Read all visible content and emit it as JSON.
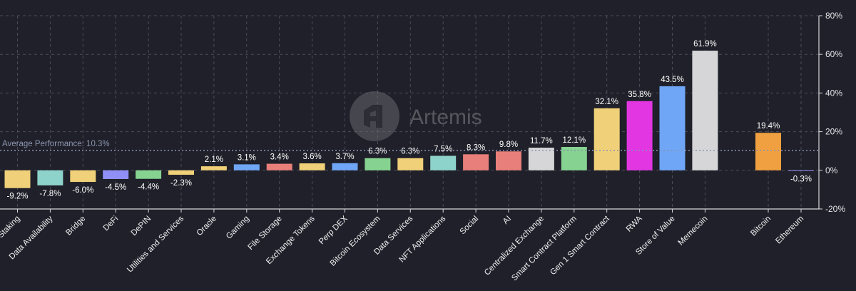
{
  "chart_data": {
    "type": "bar",
    "categories": [
      "Staking",
      "Data Availability",
      "Bridge",
      "DeFi",
      "DePIN",
      "Utilities and Services",
      "Oracle",
      "Gaming",
      "File Storage",
      "Exchange Tokens",
      "Perp DEX",
      "Bitcoin Ecosystem",
      "Data Services",
      "NFT Applications",
      "Social",
      "AI",
      "Centralized Exchange",
      "Smart Contract Platform",
      "Gen 1 Smart Contract",
      "RWA",
      "Store of Value",
      "Memecoin",
      "Bitcoin",
      "Ethereum"
    ],
    "values": [
      -9.2,
      -7.8,
      -6.0,
      -4.5,
      -4.4,
      -2.3,
      2.1,
      3.1,
      3.4,
      3.6,
      3.7,
      6.3,
      6.3,
      7.5,
      8.3,
      9.8,
      11.7,
      12.1,
      32.1,
      35.8,
      43.5,
      61.9,
      19.4,
      -0.3
    ],
    "data_labels": [
      "-9.2%",
      "-7.8%",
      "-6.0%",
      "-4.5%",
      "-4.4%",
      "-2.3%",
      "2.1%",
      "3.1%",
      "3.4%",
      "3.6%",
      "3.7%",
      "6.3%",
      "6.3%",
      "7.5%",
      "8.3%",
      "9.8%",
      "11.7%",
      "12.1%",
      "32.1%",
      "35.8%",
      "43.5%",
      "61.9%",
      "19.4%",
      "-0.3%"
    ],
    "colors": [
      "#f0d078",
      "#8ed3cb",
      "#f0d078",
      "#8f8ff5",
      "#86d391",
      "#f0d078",
      "#f0d078",
      "#6fa6f5",
      "#e87f7a",
      "#f0d078",
      "#6fa6f5",
      "#86d391",
      "#f0d078",
      "#8ed3cb",
      "#e87f7a",
      "#e87f7a",
      "#d6d6d8",
      "#86d391",
      "#f0d078",
      "#e336e3",
      "#6fa6f5",
      "#d6d6d8",
      "#f0a040",
      "#8f8ff5"
    ],
    "ylim": [
      -20,
      80
    ],
    "y_ticks": [
      80,
      60,
      40,
      20,
      0,
      -20
    ],
    "y_tick_labels": [
      "80%",
      "60%",
      "40%",
      "20%",
      "0%",
      "-20%"
    ],
    "y_axis_position": "right",
    "grid": true,
    "average": {
      "value": 10.3,
      "label": "Average Performance: 10.3%"
    },
    "xlabel": "",
    "ylabel": "",
    "title": ""
  },
  "watermark": {
    "text": "Artemis",
    "logo_icon": "artemis-logo-icon"
  }
}
